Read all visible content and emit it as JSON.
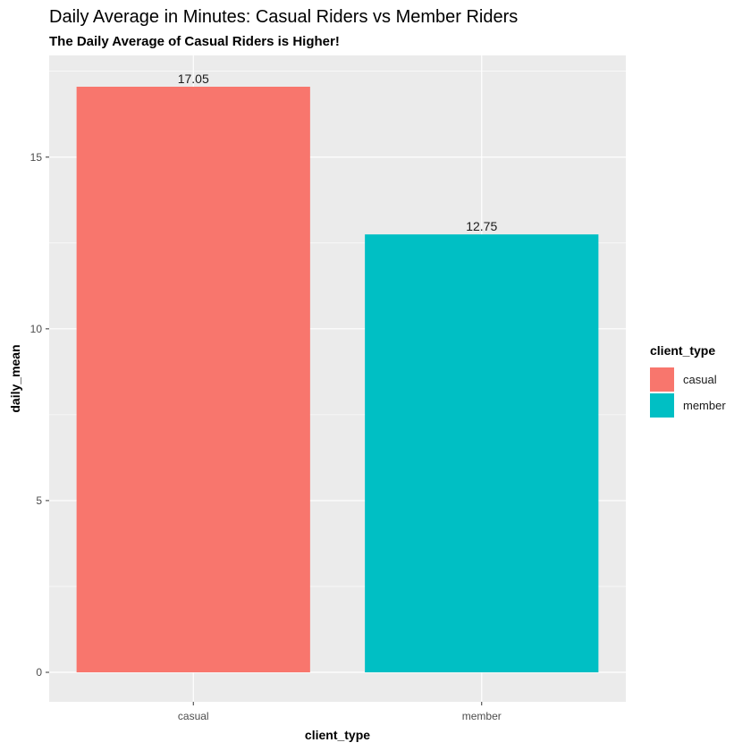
{
  "chart_data": {
    "type": "bar",
    "title": "Daily Average in Minutes: Casual Riders vs Member Riders",
    "subtitle": "The Daily Average of Casual Riders is Higher!",
    "xlabel": "client_type",
    "ylabel": "daily_mean",
    "categories": [
      "casual",
      "member"
    ],
    "values": [
      17.05,
      12.75
    ],
    "data_labels": [
      "17.05",
      "12.75"
    ],
    "colors": [
      "#F8766D",
      "#00BFC4"
    ],
    "ylim": [
      0,
      17.9
    ],
    "yticks": [
      0,
      5,
      10,
      15
    ],
    "ytick_labels": [
      "0",
      "5",
      "10",
      "15"
    ],
    "grid": true,
    "panel_background": "#EBEBEB",
    "legend": {
      "title": "client_type",
      "placement": "right",
      "entries": [
        "casual",
        "member"
      ]
    }
  }
}
